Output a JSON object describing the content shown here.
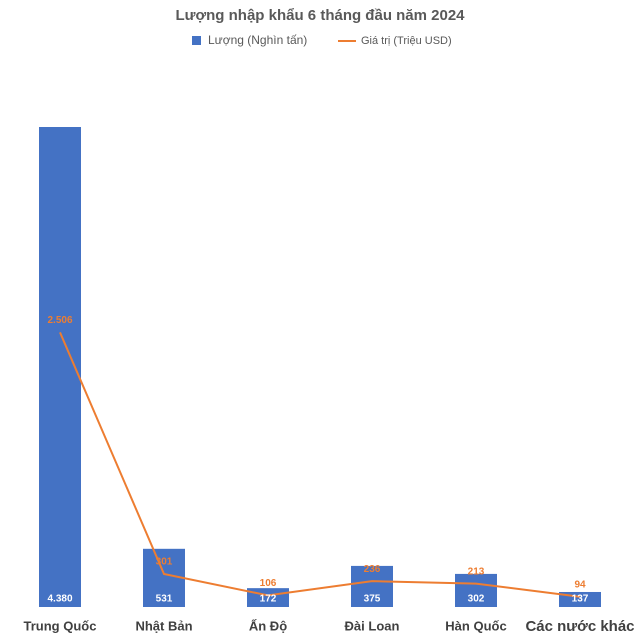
{
  "chart_data": {
    "type": "bar-line",
    "title": "Lượng nhập khẩu 6 tháng đầu năm 2024",
    "categories": [
      "Trung Quốc",
      "Nhật Bản",
      "Ấn Độ",
      "Đài Loan",
      "Hàn Quốc",
      "Các nước khác"
    ],
    "series": [
      {
        "name": "Lượng (Nghìn tấn)",
        "type": "bar",
        "color": "#4472c4",
        "values": [
          4380,
          531,
          172,
          375,
          302,
          137
        ],
        "value_labels": [
          "4.380",
          "531",
          "172",
          "375",
          "302",
          "137"
        ]
      },
      {
        "name": "Giá trị (Triệu USD)",
        "type": "line",
        "color": "#ed7d31",
        "values": [
          2506,
          301,
          106,
          236,
          213,
          94
        ],
        "value_labels": [
          "2.506",
          "301",
          "106",
          "236",
          "213",
          "94"
        ]
      }
    ],
    "legend": "top"
  }
}
